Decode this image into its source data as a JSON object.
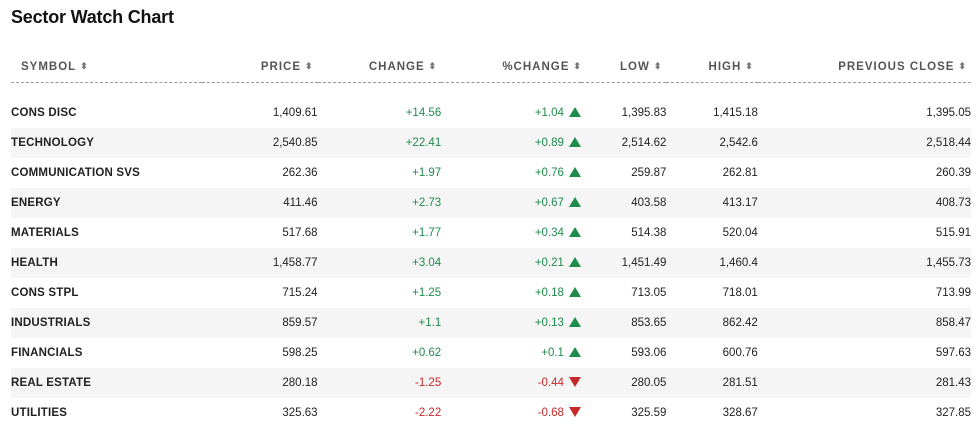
{
  "title": "Sector Watch Chart",
  "colors": {
    "positive": "#1f8b4c",
    "negative": "#c62828",
    "stripe": "#f5f5f5"
  },
  "icons": {
    "sort": "sort-arrows-icon",
    "up": "triangle-up-icon",
    "down": "triangle-down-icon"
  },
  "columns": {
    "symbol": "SYMBOL",
    "price": "PRICE",
    "change": "CHANGE",
    "pct_change": "%CHANGE",
    "low": "LOW",
    "high": "HIGH",
    "prev_close": "PREVIOUS CLOSE",
    "sort_glyph": "⬍"
  },
  "rows": [
    {
      "symbol": "CONS DISC",
      "price": "1,409.61",
      "change": "+14.56",
      "pct_change": "+1.04",
      "direction": "up",
      "low": "1,395.83",
      "high": "1,415.18",
      "prev_close": "1,395.05"
    },
    {
      "symbol": "TECHNOLOGY",
      "price": "2,540.85",
      "change": "+22.41",
      "pct_change": "+0.89",
      "direction": "up",
      "low": "2,514.62",
      "high": "2,542.6",
      "prev_close": "2,518.44"
    },
    {
      "symbol": "COMMUNICATION SVS",
      "price": "262.36",
      "change": "+1.97",
      "pct_change": "+0.76",
      "direction": "up",
      "low": "259.87",
      "high": "262.81",
      "prev_close": "260.39"
    },
    {
      "symbol": "ENERGY",
      "price": "411.46",
      "change": "+2.73",
      "pct_change": "+0.67",
      "direction": "up",
      "low": "403.58",
      "high": "413.17",
      "prev_close": "408.73"
    },
    {
      "symbol": "MATERIALS",
      "price": "517.68",
      "change": "+1.77",
      "pct_change": "+0.34",
      "direction": "up",
      "low": "514.38",
      "high": "520.04",
      "prev_close": "515.91"
    },
    {
      "symbol": "HEALTH",
      "price": "1,458.77",
      "change": "+3.04",
      "pct_change": "+0.21",
      "direction": "up",
      "low": "1,451.49",
      "high": "1,460.4",
      "prev_close": "1,455.73"
    },
    {
      "symbol": "CONS STPL",
      "price": "715.24",
      "change": "+1.25",
      "pct_change": "+0.18",
      "direction": "up",
      "low": "713.05",
      "high": "718.01",
      "prev_close": "713.99"
    },
    {
      "symbol": "INDUSTRIALS",
      "price": "859.57",
      "change": "+1.1",
      "pct_change": "+0.13",
      "direction": "up",
      "low": "853.65",
      "high": "862.42",
      "prev_close": "858.47"
    },
    {
      "symbol": "FINANCIALS",
      "price": "598.25",
      "change": "+0.62",
      "pct_change": "+0.1",
      "direction": "up",
      "low": "593.06",
      "high": "600.76",
      "prev_close": "597.63"
    },
    {
      "symbol": "REAL ESTATE",
      "price": "280.18",
      "change": "-1.25",
      "pct_change": "-0.44",
      "direction": "down",
      "low": "280.05",
      "high": "281.51",
      "prev_close": "281.43"
    },
    {
      "symbol": "UTILITIES",
      "price": "325.63",
      "change": "-2.22",
      "pct_change": "-0.68",
      "direction": "down",
      "low": "325.59",
      "high": "328.67",
      "prev_close": "327.85"
    }
  ]
}
